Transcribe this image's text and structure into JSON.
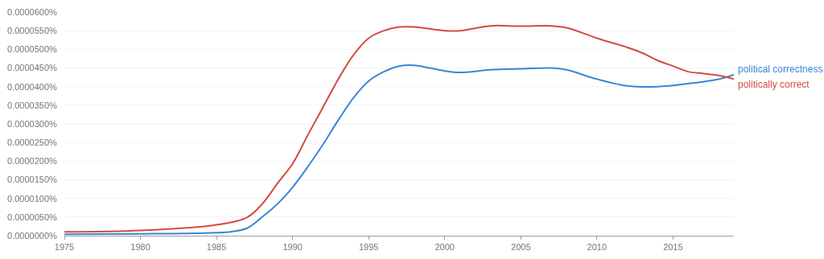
{
  "chart_data": {
    "type": "line",
    "legend": false,
    "grid": "y",
    "marker": "none",
    "line_style": "solid",
    "xlim": [
      1975,
      2019
    ],
    "xticks": [
      1975,
      1980,
      1985,
      1990,
      1995,
      2000,
      2005,
      2010,
      2015
    ],
    "ylim": [
      0,
      6e-05
    ],
    "yticks": [
      {
        "value": 0,
        "label": "0.0000000%"
      },
      {
        "value": 5e-06,
        "label": "0.0000050%"
      },
      {
        "value": 1e-05,
        "label": "0.0000100%"
      },
      {
        "value": 1.5e-05,
        "label": "0.0000150%"
      },
      {
        "value": 2e-05,
        "label": "0.0000200%"
      },
      {
        "value": 2.5e-05,
        "label": "0.0000250%"
      },
      {
        "value": 3e-05,
        "label": "0.0000300%"
      },
      {
        "value": 3.5e-05,
        "label": "0.0000350%"
      },
      {
        "value": 4e-05,
        "label": "0.0000400%"
      },
      {
        "value": 4.5e-05,
        "label": "0.0000450%"
      },
      {
        "value": 5e-05,
        "label": "0.0000500%"
      },
      {
        "value": 5.5e-05,
        "label": "0.0000550%"
      },
      {
        "value": 6e-05,
        "label": "0.0000600%"
      }
    ],
    "series": [
      {
        "name": "political correctness",
        "color": "#3b86d4",
        "x": [
          1975,
          1980,
          1985,
          1986,
          1987,
          1988,
          1989,
          1990,
          1991,
          1992,
          1993,
          1994,
          1995,
          1996,
          1997,
          1998,
          1999,
          2000,
          2001,
          2003,
          2005,
          2007,
          2008,
          2010,
          2012,
          2014,
          2016,
          2018,
          2019
        ],
        "values": [
          4e-07,
          5e-07,
          8e-07,
          1.1e-06,
          2e-06,
          5e-06,
          8.5e-06,
          1.3e-05,
          1.85e-05,
          2.45e-05,
          3.1e-05,
          3.7e-05,
          4.15e-05,
          4.4e-05,
          4.55e-05,
          4.57e-05,
          4.5e-05,
          4.42e-05,
          4.38e-05,
          4.45e-05,
          4.48e-05,
          4.5e-05,
          4.45e-05,
          4.2e-05,
          4.02e-05,
          4e-05,
          4.08e-05,
          4.2e-05,
          4.32e-05
        ]
      },
      {
        "name": "politically correct",
        "color": "#d34b3f",
        "x": [
          1975,
          1980,
          1985,
          1987,
          1988,
          1989,
          1990,
          1991,
          1992,
          1993,
          1994,
          1995,
          1996,
          1997,
          1998,
          2000,
          2001,
          2003,
          2005,
          2007,
          2008,
          2010,
          2012,
          2013,
          2014,
          2015,
          2016,
          2017,
          2018,
          2019
        ],
        "values": [
          1e-06,
          1.4e-06,
          2.9e-06,
          4.9e-06,
          8.5e-06,
          1.4e-05,
          1.93e-05,
          2.7e-05,
          3.45e-05,
          4.2e-05,
          4.85e-05,
          5.3e-05,
          5.5e-05,
          5.6e-05,
          5.6e-05,
          5.5e-05,
          5.5e-05,
          5.63e-05,
          5.62e-05,
          5.63e-05,
          5.58e-05,
          5.3e-05,
          5.05e-05,
          4.9e-05,
          4.7e-05,
          4.55e-05,
          4.4e-05,
          4.35e-05,
          4.3e-05,
          4.2e-05
        ]
      }
    ]
  }
}
